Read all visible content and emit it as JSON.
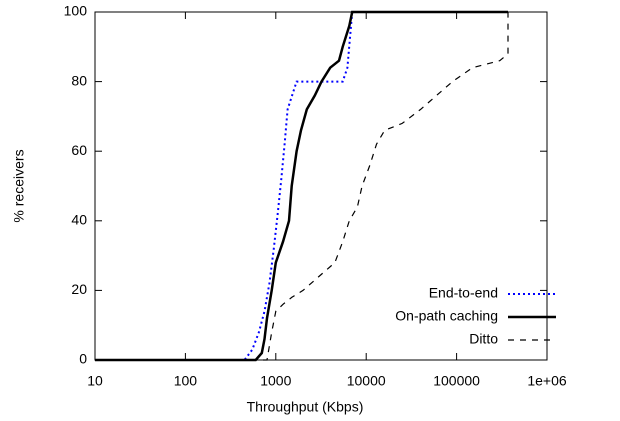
{
  "chart_data": {
    "type": "line",
    "x_label": "Throughput (Kbps)",
    "y_label": "% receivers",
    "x_scale": "log",
    "xlim": [
      10,
      1000000
    ],
    "ylim": [
      0,
      100
    ],
    "xticks": [
      10,
      100,
      1000,
      10000,
      100000,
      {
        "value": 1000000,
        "label": "1e+06"
      }
    ],
    "yticks": [
      0,
      20,
      40,
      60,
      80,
      100
    ],
    "legend": "lower right",
    "series": [
      {
        "name": "End-to-end",
        "color": "#0000ff",
        "dash": "dotted",
        "x": [
          10,
          450,
          550,
          650,
          750,
          850,
          950,
          1050,
          1150,
          1250,
          1350,
          1700,
          5500,
          6200,
          7000,
          370000
        ],
        "values": [
          0,
          0,
          3,
          8,
          14,
          22,
          32,
          42,
          52,
          62,
          72,
          80,
          80,
          84,
          100,
          100
        ]
      },
      {
        "name": "On-path caching",
        "color": "#000000",
        "dash": "solid",
        "x": [
          10,
          600,
          700,
          750,
          800,
          900,
          1000,
          1200,
          1400,
          1500,
          1700,
          1900,
          2200,
          2700,
          3200,
          4000,
          5000,
          5500,
          6500,
          7000,
          370000
        ],
        "values": [
          0,
          0,
          2,
          6,
          12,
          20,
          28,
          34,
          40,
          50,
          60,
          66,
          72,
          76,
          80,
          84,
          86,
          90,
          96,
          100,
          100
        ]
      },
      {
        "name": "Ditto",
        "color": "#000000",
        "dash": "dashed",
        "x": [
          10,
          800,
          900,
          1000,
          1200,
          1500,
          2000,
          3000,
          4500,
          5500,
          6500,
          8000,
          9000,
          11000,
          13000,
          16000,
          25000,
          40000,
          60000,
          90000,
          150000,
          300000,
          370000,
          370000
        ],
        "values": [
          0,
          0,
          8,
          14,
          16,
          18,
          20,
          24,
          28,
          34,
          40,
          44,
          50,
          56,
          62,
          66,
          68,
          72,
          76,
          80,
          84,
          86,
          88,
          100
        ]
      }
    ]
  }
}
